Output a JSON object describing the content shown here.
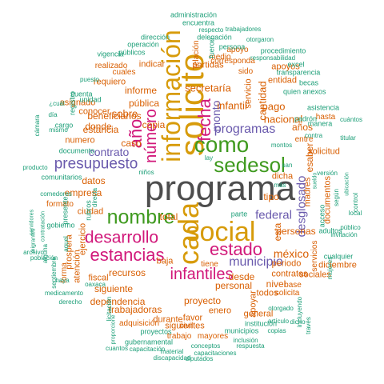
{
  "palette": {
    "gray": "#4d4d4d",
    "orange": "#d95f02",
    "pink": "#d1187a",
    "purple": "#6a5aad",
    "green": "#3f9a1f",
    "gold": "#d79b0a",
    "teal": "#1b9e77"
  },
  "words": [
    {
      "text": "programa",
      "color": "gray"
    },
    {
      "text": "solicito",
      "color": "gold"
    },
    {
      "text": "información",
      "color": "gold"
    },
    {
      "text": "social",
      "color": "gold"
    },
    {
      "text": "cada",
      "color": "gold"
    },
    {
      "text": "sedesol",
      "color": "green"
    },
    {
      "text": "como",
      "color": "green"
    },
    {
      "text": "nombre",
      "color": "green"
    },
    {
      "text": "desarrollo",
      "color": "pink"
    },
    {
      "text": "estancias",
      "color": "pink"
    },
    {
      "text": "infantiles",
      "color": "pink"
    },
    {
      "text": "estado",
      "color": "pink"
    },
    {
      "text": "número",
      "color": "pink"
    },
    {
      "text": "año",
      "color": "pink"
    },
    {
      "text": "fecha",
      "color": "pink"
    },
    {
      "text": "presupuesto",
      "color": "purple"
    },
    {
      "text": "contrato",
      "color": "purple"
    },
    {
      "text": "programas",
      "color": "purple"
    },
    {
      "text": "municipio",
      "color": "purple"
    },
    {
      "text": "federal",
      "color": "purple"
    },
    {
      "text": "desglosado",
      "color": "purple"
    },
    {
      "text": "monto",
      "color": "purple"
    },
    {
      "text": "secretaría",
      "color": "orange"
    },
    {
      "text": "infantil",
      "color": "orange"
    },
    {
      "text": "nacional",
      "color": "orange"
    },
    {
      "text": "pago",
      "color": "orange"
    },
    {
      "text": "cantidad",
      "color": "orange"
    },
    {
      "text": "años",
      "color": "orange"
    },
    {
      "text": "beneficiarios",
      "color": "orange"
    },
    {
      "text": "estancia",
      "color": "orange"
    },
    {
      "text": "sobre",
      "color": "orange"
    },
    {
      "text": "caso",
      "color": "orange"
    },
    {
      "text": "copia",
      "color": "orange"
    },
    {
      "text": "pública",
      "color": "orange"
    },
    {
      "text": "informe",
      "color": "orange"
    },
    {
      "text": "indicar",
      "color": "orange"
    },
    {
      "text": "partidas",
      "color": "orange"
    },
    {
      "text": "total",
      "color": "orange"
    },
    {
      "text": "méxico",
      "color": "orange"
    },
    {
      "text": "personas",
      "color": "orange"
    },
    {
      "text": "recursos",
      "color": "orange"
    },
    {
      "text": "siguiente",
      "color": "orange"
    },
    {
      "text": "dependencia",
      "color": "orange"
    },
    {
      "text": "trabajadoras",
      "color": "orange"
    },
    {
      "text": "personal",
      "color": "orange"
    },
    {
      "text": "proyecto",
      "color": "orange"
    },
    {
      "text": "desde",
      "color": "orange"
    },
    {
      "text": "nivel",
      "color": "orange"
    },
    {
      "text": "datos",
      "color": "orange"
    },
    {
      "text": "empresa",
      "color": "orange"
    },
    {
      "text": "donde",
      "color": "orange"
    },
    {
      "text": "conocer",
      "color": "orange"
    },
    {
      "text": "asignado",
      "color": "orange"
    },
    {
      "text": "requiero",
      "color": "orange"
    },
    {
      "text": "numero",
      "color": "orange"
    },
    {
      "text": "tipo",
      "color": "orange"
    },
    {
      "text": "esta",
      "color": "orange"
    },
    {
      "text": "esaber",
      "color": "orange"
    },
    {
      "text": "contratos",
      "color": "orange"
    },
    {
      "text": "todos",
      "color": "orange"
    },
    {
      "text": "general",
      "color": "orange"
    },
    {
      "text": "apoyar",
      "color": "orange"
    },
    {
      "text": "solicitud",
      "color": "orange"
    },
    {
      "text": "madres",
      "color": "orange"
    },
    {
      "text": "documentos",
      "color": "orange"
    },
    {
      "text": "diciembre",
      "color": "orange"
    },
    {
      "text": "periodo",
      "color": "orange"
    },
    {
      "text": "sociales",
      "color": "orange"
    },
    {
      "text": "favor",
      "color": "orange"
    },
    {
      "text": "enero",
      "color": "orange"
    },
    {
      "text": "durante",
      "color": "orange"
    },
    {
      "text": "adquisición",
      "color": "orange"
    },
    {
      "text": "siguientes",
      "color": "orange"
    },
    {
      "text": "mayores",
      "color": "orange"
    },
    {
      "text": "trabajo",
      "color": "orange"
    },
    {
      "text": "atención",
      "color": "orange"
    },
    {
      "text": "fiscal",
      "color": "orange"
    },
    {
      "text": "baja",
      "color": "orange"
    },
    {
      "text": "ejercicio",
      "color": "orange"
    },
    {
      "text": "prospera",
      "color": "orange"
    },
    {
      "text": "ciudad",
      "color": "orange"
    },
    {
      "text": "formato",
      "color": "orange"
    },
    {
      "text": "entidad",
      "color": "orange"
    },
    {
      "text": "apoyos",
      "color": "orange"
    },
    {
      "text": "servicio",
      "color": "orange"
    },
    {
      "text": "relación",
      "color": "orange"
    },
    {
      "text": "medio",
      "color": "orange"
    },
    {
      "text": "corresponda",
      "color": "orange"
    },
    {
      "text": "apoyo",
      "color": "orange"
    },
    {
      "text": "dicha",
      "color": "orange"
    },
    {
      "text": "cuales",
      "color": "orange"
    },
    {
      "text": "realizado",
      "color": "orange"
    },
    {
      "text": "hasta",
      "color": "orange"
    },
    {
      "text": "sido",
      "color": "orange"
    },
    {
      "text": "entre",
      "color": "orange"
    },
    {
      "text": "base",
      "color": "orange"
    },
    {
      "text": "solicita",
      "color": "orange"
    },
    {
      "text": "forma",
      "color": "orange"
    },
    {
      "text": "civil",
      "color": "orange"
    },
    {
      "text": "tiene",
      "color": "orange"
    },
    {
      "text": "servicios",
      "color": "orange"
    },
    {
      "text": "administración",
      "color": "teal"
    },
    {
      "text": "encuentra",
      "color": "teal"
    },
    {
      "text": "trabajadores",
      "color": "teal"
    },
    {
      "text": "respecto",
      "color": "teal"
    },
    {
      "text": "operación",
      "color": "teal"
    },
    {
      "text": "dirección",
      "color": "teal"
    },
    {
      "text": "delegación",
      "color": "teal"
    },
    {
      "text": "otorgaron",
      "color": "teal"
    },
    {
      "text": "públicos",
      "color": "teal"
    },
    {
      "text": "vigencia",
      "color": "teal"
    },
    {
      "text": "fueron",
      "color": "teal"
    },
    {
      "text": "persona",
      "color": "teal"
    },
    {
      "text": "procedimiento",
      "color": "teal"
    },
    {
      "text": "responsabilidad",
      "color": "teal"
    },
    {
      "text": "excel",
      "color": "teal"
    },
    {
      "text": "transparencia",
      "color": "teal"
    },
    {
      "text": "becas",
      "color": "teal"
    },
    {
      "text": "quien",
      "color": "teal"
    },
    {
      "text": "anexos",
      "color": "teal"
    },
    {
      "text": "asistencia",
      "color": "teal"
    },
    {
      "text": "padrón",
      "color": "teal"
    },
    {
      "text": "cuántos",
      "color": "teal"
    },
    {
      "text": "manera",
      "color": "teal"
    },
    {
      "text": "titular",
      "color": "teal"
    },
    {
      "text": "puesto",
      "color": "teal"
    },
    {
      "text": "unidad",
      "color": "teal"
    },
    {
      "text": "cuenta",
      "color": "teal"
    },
    {
      "text": "registro",
      "color": "teal"
    },
    {
      "text": "¿cuál",
      "color": "teal"
    },
    {
      "text": "día",
      "color": "teal"
    },
    {
      "text": "cámara",
      "color": "teal"
    },
    {
      "text": "cargo",
      "color": "teal"
    },
    {
      "text": "mismo",
      "color": "teal"
    },
    {
      "text": "documento",
      "color": "teal"
    },
    {
      "text": "producto",
      "color": "teal"
    },
    {
      "text": "comunitarios",
      "color": "teal"
    },
    {
      "text": "comedores",
      "color": "teal"
    },
    {
      "text": "presente",
      "color": "teal"
    },
    {
      "text": "gobierno",
      "color": "teal"
    },
    {
      "text": "servidores",
      "color": "teal"
    },
    {
      "text": "contratación",
      "color": "teal"
    },
    {
      "text": "migrantes",
      "color": "teal"
    },
    {
      "text": "alguna",
      "color": "teal"
    },
    {
      "text": "archivo",
      "color": "teal"
    },
    {
      "text": "población",
      "color": "teal"
    },
    {
      "text": "septiembre",
      "color": "teal"
    },
    {
      "text": "haya",
      "color": "teal"
    },
    {
      "text": "medicamento",
      "color": "teal"
    },
    {
      "text": "derecho",
      "color": "teal"
    },
    {
      "text": "oaxaca",
      "color": "teal"
    },
    {
      "text": "licitación",
      "color": "teal"
    },
    {
      "text": "proporcione",
      "color": "teal"
    },
    {
      "text": "cuantos",
      "color": "teal"
    },
    {
      "text": "proyectos",
      "color": "teal"
    },
    {
      "text": "gubernamental",
      "color": "teal"
    },
    {
      "text": "material",
      "color": "teal"
    },
    {
      "text": "capacitación",
      "color": "teal"
    },
    {
      "text": "discapacidad",
      "color": "teal"
    },
    {
      "text": "diputados",
      "color": "teal"
    },
    {
      "text": "capacitaciones",
      "color": "teal"
    },
    {
      "text": "respuesta",
      "color": "teal"
    },
    {
      "text": "inclusión",
      "color": "teal"
    },
    {
      "text": "copias",
      "color": "teal"
    },
    {
      "text": "municipios",
      "color": "teal"
    },
    {
      "text": "conceptos",
      "color": "teal"
    },
    {
      "text": "artículo",
      "color": "teal"
    },
    {
      "text": "institución",
      "color": "teal"
    },
    {
      "text": "dicho",
      "color": "teal"
    },
    {
      "text": "otorgado",
      "color": "teal"
    },
    {
      "text": "incluyendo",
      "color": "teal"
    },
    {
      "text": "través",
      "color": "teal"
    },
    {
      "text": "mujeres",
      "color": "teal"
    },
    {
      "text": "cualquier",
      "color": "teal"
    },
    {
      "text": "invitación",
      "color": "teal"
    },
    {
      "text": "público",
      "color": "teal"
    },
    {
      "text": "local",
      "color": "teal"
    },
    {
      "text": "control",
      "color": "teal"
    },
    {
      "text": "ubicación",
      "color": "teal"
    },
    {
      "text": "versión",
      "color": "teal"
    },
    {
      "text": "adultos",
      "color": "teal"
    },
    {
      "text": "acceso",
      "color": "teal"
    },
    {
      "text": "según",
      "color": "teal"
    },
    {
      "text": "contra",
      "color": "teal"
    },
    {
      "text": "sueldo",
      "color": "teal"
    },
    {
      "text": "más",
      "color": "teal"
    },
    {
      "text": "montos",
      "color": "teal"
    },
    {
      "text": "san",
      "color": "teal"
    },
    {
      "text": "lay",
      "color": "teal"
    },
    {
      "text": "niños",
      "color": "teal"
    },
    {
      "text": "rubros",
      "color": "teal"
    },
    {
      "text": "parte",
      "color": "teal"
    },
    {
      "text": "directa",
      "color": "teal"
    },
    {
      "text": "aquel",
      "color": "teal"
    }
  ]
}
